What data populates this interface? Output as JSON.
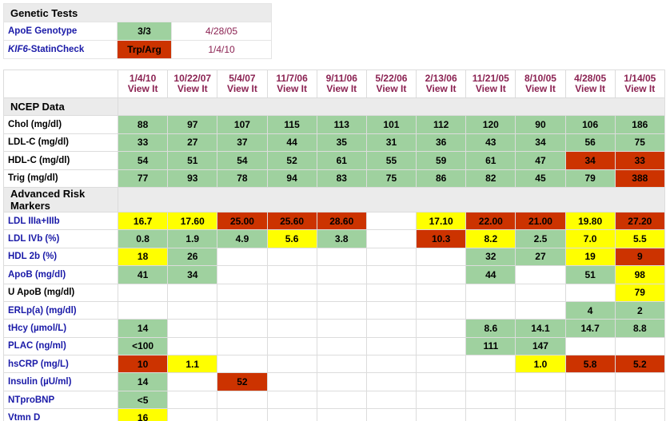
{
  "genetic": {
    "title": "Genetic Tests",
    "rows": [
      {
        "label": "ApoE Genotype",
        "value": "3/3",
        "status": "g",
        "date": "4/28/05"
      },
      {
        "label_italic": "KIF6",
        "label_rest": "-StatinCheck",
        "value": "Trp/Arg",
        "status": "r",
        "date": "1/4/10"
      }
    ]
  },
  "dates": [
    {
      "date": "1/4/10",
      "link": "View It"
    },
    {
      "date": "10/22/07",
      "link": "View It"
    },
    {
      "date": "5/4/07",
      "link": "View It"
    },
    {
      "date": "11/7/06",
      "link": "View It"
    },
    {
      "date": "9/11/06",
      "link": "View It"
    },
    {
      "date": "5/22/06",
      "link": "View It"
    },
    {
      "date": "2/13/06",
      "link": "View It"
    },
    {
      "date": "11/21/05",
      "link": "View It"
    },
    {
      "date": "8/10/05",
      "link": "View It"
    },
    {
      "date": "4/28/05",
      "link": "View It"
    },
    {
      "date": "1/14/05",
      "link": "View It"
    }
  ],
  "sections": [
    {
      "title": "NCEP Data",
      "rows": [
        {
          "label": "Chol (mg/dl)",
          "color": "black",
          "cells": [
            [
              "88",
              "g"
            ],
            [
              "97",
              "g"
            ],
            [
              "107",
              "g"
            ],
            [
              "115",
              "g"
            ],
            [
              "113",
              "g"
            ],
            [
              "101",
              "g"
            ],
            [
              "112",
              "g"
            ],
            [
              "120",
              "g"
            ],
            [
              "90",
              "g"
            ],
            [
              "106",
              "g"
            ],
            [
              "186",
              "g"
            ]
          ]
        },
        {
          "label": "LDL-C (mg/dl)",
          "color": "black",
          "cells": [
            [
              "33",
              "g"
            ],
            [
              "27",
              "g"
            ],
            [
              "37",
              "g"
            ],
            [
              "44",
              "g"
            ],
            [
              "35",
              "g"
            ],
            [
              "31",
              "g"
            ],
            [
              "36",
              "g"
            ],
            [
              "43",
              "g"
            ],
            [
              "34",
              "g"
            ],
            [
              "56",
              "g"
            ],
            [
              "75",
              "g"
            ]
          ]
        },
        {
          "label": "HDL-C (mg/dl)",
          "color": "black",
          "cells": [
            [
              "54",
              "g"
            ],
            [
              "51",
              "g"
            ],
            [
              "54",
              "g"
            ],
            [
              "52",
              "g"
            ],
            [
              "61",
              "g"
            ],
            [
              "55",
              "g"
            ],
            [
              "59",
              "g"
            ],
            [
              "61",
              "g"
            ],
            [
              "47",
              "g"
            ],
            [
              "34",
              "r"
            ],
            [
              "33",
              "r"
            ]
          ]
        },
        {
          "label": "Trig (mg/dl)",
          "color": "black",
          "cells": [
            [
              "77",
              "g"
            ],
            [
              "93",
              "g"
            ],
            [
              "78",
              "g"
            ],
            [
              "94",
              "g"
            ],
            [
              "83",
              "g"
            ],
            [
              "75",
              "g"
            ],
            [
              "86",
              "g"
            ],
            [
              "82",
              "g"
            ],
            [
              "45",
              "g"
            ],
            [
              "79",
              "g"
            ],
            [
              "388",
              "r"
            ]
          ]
        }
      ]
    },
    {
      "title": "Advanced Risk Markers",
      "rows": [
        {
          "label": "LDL IIIa+IIIb",
          "color": "blue",
          "cells": [
            [
              "16.7",
              "y"
            ],
            [
              "17.60",
              "y"
            ],
            [
              "25.00",
              "r"
            ],
            [
              "25.60",
              "r"
            ],
            [
              "28.60",
              "r"
            ],
            [
              "",
              "e"
            ],
            [
              "17.10",
              "y"
            ],
            [
              "22.00",
              "r"
            ],
            [
              "21.00",
              "r"
            ],
            [
              "19.80",
              "y"
            ],
            [
              "27.20",
              "r"
            ]
          ]
        },
        {
          "label": "LDL IVb (%)",
          "color": "blue",
          "cells": [
            [
              "0.8",
              "g"
            ],
            [
              "1.9",
              "g"
            ],
            [
              "4.9",
              "g"
            ],
            [
              "5.6",
              "y"
            ],
            [
              "3.8",
              "g"
            ],
            [
              "",
              "e"
            ],
            [
              "10.3",
              "r"
            ],
            [
              "8.2",
              "y"
            ],
            [
              "2.5",
              "g"
            ],
            [
              "7.0",
              "y"
            ],
            [
              "5.5",
              "y"
            ]
          ]
        },
        {
          "label": "HDL 2b (%)",
          "color": "blue",
          "cells": [
            [
              "18",
              "y"
            ],
            [
              "26",
              "g"
            ],
            [
              "",
              "e"
            ],
            [
              "",
              "e"
            ],
            [
              "",
              "e"
            ],
            [
              "",
              "e"
            ],
            [
              "",
              "e"
            ],
            [
              "32",
              "g"
            ],
            [
              "27",
              "g"
            ],
            [
              "19",
              "y"
            ],
            [
              "9",
              "r"
            ]
          ]
        },
        {
          "label": "ApoB (mg/dl)",
          "color": "blue",
          "cells": [
            [
              "41",
              "g"
            ],
            [
              "34",
              "g"
            ],
            [
              "",
              "e"
            ],
            [
              "",
              "e"
            ],
            [
              "",
              "e"
            ],
            [
              "",
              "e"
            ],
            [
              "",
              "e"
            ],
            [
              "44",
              "g"
            ],
            [
              "",
              "e"
            ],
            [
              "51",
              "g"
            ],
            [
              "98",
              "y"
            ]
          ]
        },
        {
          "label": "U ApoB (mg/dl)",
          "color": "black",
          "cells": [
            [
              "",
              "e"
            ],
            [
              "",
              "e"
            ],
            [
              "",
              "e"
            ],
            [
              "",
              "e"
            ],
            [
              "",
              "e"
            ],
            [
              "",
              "e"
            ],
            [
              "",
              "e"
            ],
            [
              "",
              "e"
            ],
            [
              "",
              "e"
            ],
            [
              "",
              "e"
            ],
            [
              "79",
              "y"
            ]
          ]
        },
        {
          "label": "ERLp(a) (mg/dl)",
          "color": "blue",
          "cells": [
            [
              "",
              "e"
            ],
            [
              "",
              "e"
            ],
            [
              "",
              "e"
            ],
            [
              "",
              "e"
            ],
            [
              "",
              "e"
            ],
            [
              "",
              "e"
            ],
            [
              "",
              "e"
            ],
            [
              "",
              "e"
            ],
            [
              "",
              "e"
            ],
            [
              "4",
              "g"
            ],
            [
              "2",
              "g"
            ]
          ]
        },
        {
          "label": "tHcy (µmol/L)",
          "color": "blue",
          "cells": [
            [
              "14",
              "g"
            ],
            [
              "",
              "e"
            ],
            [
              "",
              "e"
            ],
            [
              "",
              "e"
            ],
            [
              "",
              "e"
            ],
            [
              "",
              "e"
            ],
            [
              "",
              "e"
            ],
            [
              "8.6",
              "g"
            ],
            [
              "14.1",
              "g"
            ],
            [
              "14.7",
              "g"
            ],
            [
              "8.8",
              "g"
            ]
          ]
        },
        {
          "label": "PLAC (ng/ml)",
          "color": "blue",
          "cells": [
            [
              "<100",
              "g"
            ],
            [
              "",
              "e"
            ],
            [
              "",
              "e"
            ],
            [
              "",
              "e"
            ],
            [
              "",
              "e"
            ],
            [
              "",
              "e"
            ],
            [
              "",
              "e"
            ],
            [
              "111",
              "g"
            ],
            [
              "147",
              "g"
            ],
            [
              "",
              "e"
            ],
            [
              "",
              "e"
            ]
          ]
        },
        {
          "label": "hsCRP (mg/L)",
          "color": "blue",
          "cells": [
            [
              "10",
              "r"
            ],
            [
              "1.1",
              "y"
            ],
            [
              "",
              "e"
            ],
            [
              "",
              "e"
            ],
            [
              "",
              "e"
            ],
            [
              "",
              "e"
            ],
            [
              "",
              "e"
            ],
            [
              "",
              "e"
            ],
            [
              "1.0",
              "y"
            ],
            [
              "5.8",
              "r"
            ],
            [
              "5.2",
              "r"
            ]
          ]
        },
        {
          "label": "Insulin (µU/ml)",
          "color": "blue",
          "cells": [
            [
              "14",
              "g"
            ],
            [
              "",
              "e"
            ],
            [
              "52",
              "r"
            ],
            [
              "",
              "e"
            ],
            [
              "",
              "e"
            ],
            [
              "",
              "e"
            ],
            [
              "",
              "e"
            ],
            [
              "",
              "e"
            ],
            [
              "",
              "e"
            ],
            [
              "",
              "e"
            ],
            [
              "",
              "e"
            ]
          ]
        },
        {
          "label": "NTproBNP",
          "color": "blue",
          "cells": [
            [
              "<5",
              "g"
            ],
            [
              "",
              "e"
            ],
            [
              "",
              "e"
            ],
            [
              "",
              "e"
            ],
            [
              "",
              "e"
            ],
            [
              "",
              "e"
            ],
            [
              "",
              "e"
            ],
            [
              "",
              "e"
            ],
            [
              "",
              "e"
            ],
            [
              "",
              "e"
            ],
            [
              "",
              "e"
            ]
          ]
        },
        {
          "label": "Vtmn D",
          "color": "blue",
          "cells": [
            [
              "16",
              "y"
            ],
            [
              "",
              "e"
            ],
            [
              "",
              "e"
            ],
            [
              "",
              "e"
            ],
            [
              "",
              "e"
            ],
            [
              "",
              "e"
            ],
            [
              "",
              "e"
            ],
            [
              "",
              "e"
            ],
            [
              "",
              "e"
            ],
            [
              "",
              "e"
            ],
            [
              "",
              "e"
            ]
          ]
        }
      ]
    }
  ],
  "colors": {
    "green": "#9fd19f",
    "yellow": "#ffff00",
    "red": "#cc3300",
    "label_blue": "#1a1aa8",
    "date_maroon": "#8b2252"
  }
}
